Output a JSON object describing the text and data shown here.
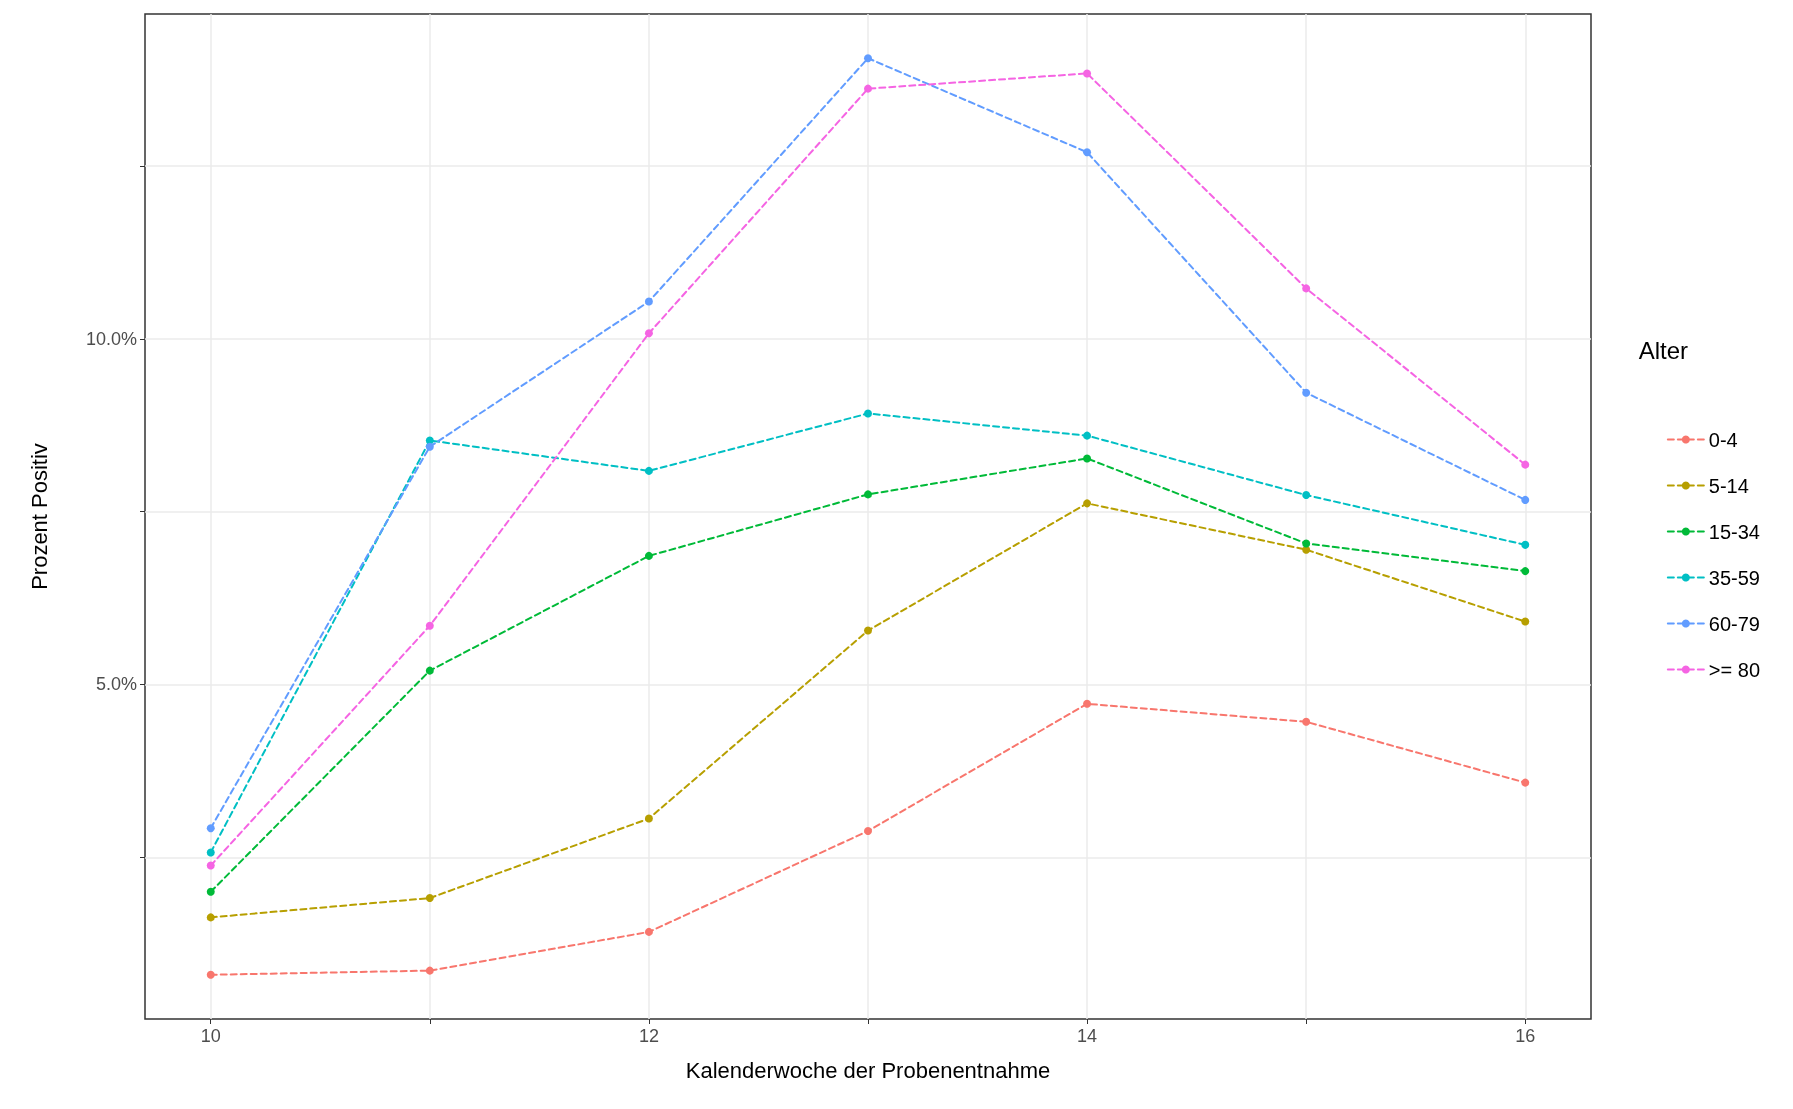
{
  "chart_data": {
    "type": "line",
    "xlabel": "Kalenderwoche der Probenentnahme",
    "ylabel": "Prozent Positiv",
    "legend_title": "Alter",
    "x": [
      10,
      11,
      12,
      13,
      14,
      15,
      16
    ],
    "xlim": [
      9.7,
      16.3
    ],
    "xticks": [
      10,
      {
        "value": 11,
        "label": null
      },
      12,
      {
        "value": 13,
        "label": null
      },
      14,
      {
        "value": 15,
        "label": null
      },
      16
    ],
    "ylim": [
      0.16,
      14.7
    ],
    "yticks": [
      {
        "value": 2.5,
        "label": null
      },
      {
        "value": 5,
        "label": "5.0%"
      },
      {
        "value": 7.5,
        "label": null
      },
      {
        "value": 10,
        "label": "10.0%"
      },
      {
        "value": 12.5,
        "label": null
      }
    ],
    "grid": true,
    "legend": "right",
    "marker": "circle",
    "line_style": "dashed",
    "series": [
      {
        "name": "0-4",
        "color": "#f8766d",
        "values": [
          0.8,
          0.86,
          1.42,
          2.88,
          4.72,
          4.46,
          3.58
        ]
      },
      {
        "name": "5-14",
        "color": "#b79f00",
        "values": [
          1.63,
          1.91,
          3.06,
          5.78,
          7.62,
          6.95,
          5.91
        ]
      },
      {
        "name": "15-34",
        "color": "#00ba38",
        "values": [
          2.0,
          5.2,
          6.86,
          7.75,
          8.27,
          7.04,
          6.64
        ]
      },
      {
        "name": "35-59",
        "color": "#00bfc4",
        "values": [
          2.57,
          8.53,
          8.09,
          8.92,
          8.6,
          7.74,
          7.02
        ]
      },
      {
        "name": "60-79",
        "color": "#619cff",
        "values": [
          2.92,
          8.44,
          10.54,
          14.06,
          12.7,
          9.22,
          7.67
        ]
      },
      {
        "name": ">= 80",
        "color": "#f564e3",
        "values": [
          2.38,
          5.85,
          10.08,
          13.62,
          13.84,
          10.73,
          8.18
        ]
      }
    ]
  }
}
